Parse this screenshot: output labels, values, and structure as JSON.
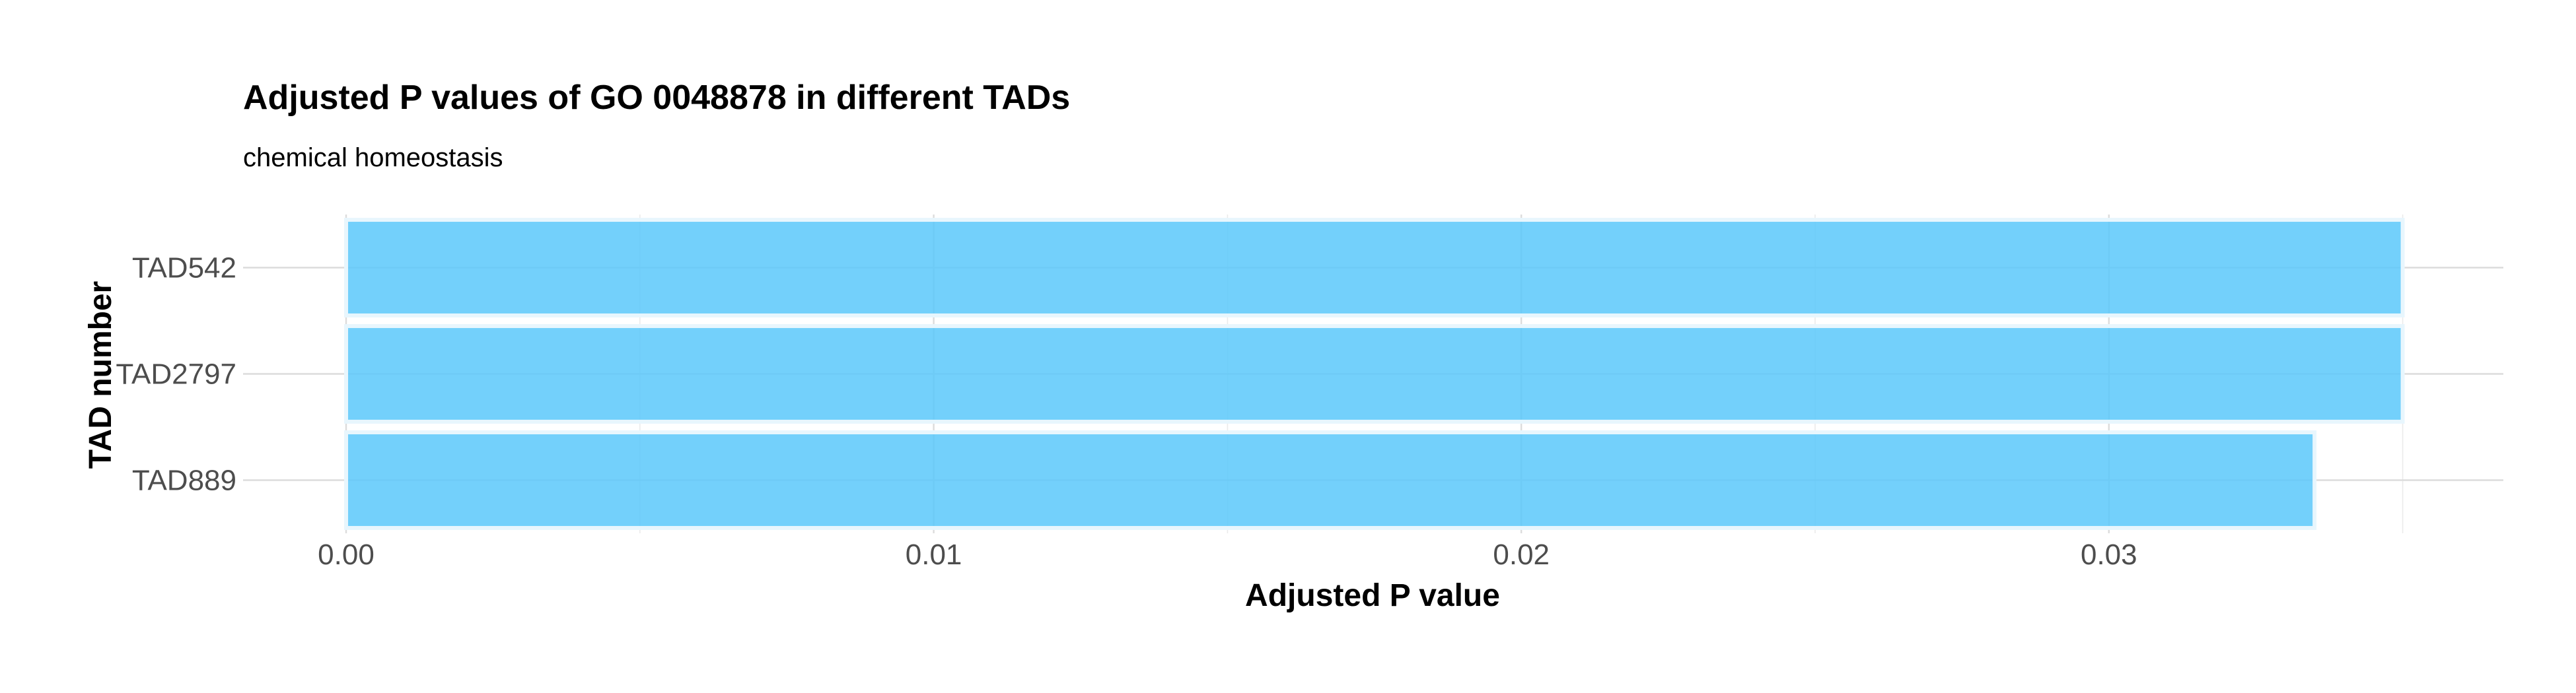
{
  "chart_data": {
    "type": "bar",
    "orientation": "horizontal",
    "title": "Adjusted P values of GO 0048878 in different TADs",
    "subtitle": "chemical homeostasis",
    "xlabel": "Adjusted P value",
    "ylabel": "TAD number",
    "categories": [
      "TAD542",
      "TAD2797",
      "TAD889"
    ],
    "values": [
      0.035,
      0.035,
      0.0335
    ],
    "xlim": [
      -0.00175,
      0.03675
    ],
    "xticks": [
      0.0,
      0.01,
      0.02,
      0.03
    ],
    "xtick_labels": [
      "0.00",
      "0.01",
      "0.02",
      "0.03"
    ],
    "grid": true,
    "legend": "none",
    "bar_color": "#5bc8fa",
    "bar_outline_color": "#e8f6fd"
  }
}
